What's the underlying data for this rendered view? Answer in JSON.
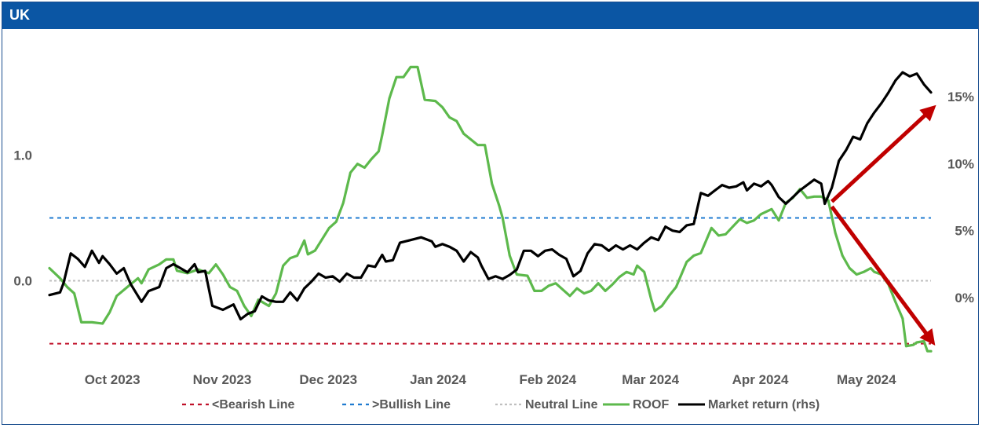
{
  "title": "UK",
  "colors": {
    "title_bar": "#0b56a4",
    "roof": "#5db94c",
    "market": "#000000",
    "bearish": "#c0112a",
    "bullish": "#1f7bd0",
    "neutral": "#bfbfbf",
    "arrow": "#c00000"
  },
  "chart_data": {
    "type": "line",
    "title": "UK",
    "x_tick_labels": [
      "Oct 2023",
      "Nov 2023",
      "Dec 2023",
      "Jan 2024",
      "Feb 2024",
      "Mar 2024",
      "Apr 2024",
      "May 2024"
    ],
    "x_tick_dates": [
      "2023-10-01",
      "2023-11-01",
      "2023-12-01",
      "2024-01-01",
      "2024-02-01",
      "2024-03-01",
      "2024-04-01",
      "2024-05-01"
    ],
    "x_range": [
      "2023-09-15",
      "2024-05-21"
    ],
    "y_left": {
      "ticks": [
        0.0,
        1.0
      ],
      "tick_labels": [
        "0.0",
        "1.0"
      ],
      "range": [
        -0.69,
        1.84
      ]
    },
    "y_right": {
      "ticks": [
        0,
        5,
        10,
        15
      ],
      "tick_labels": [
        "0%",
        "5%",
        "10%",
        "15%"
      ],
      "range": [
        -5.2,
        18.5
      ],
      "unit": "%"
    },
    "reference_lines": [
      {
        "name": "<Bearish Line",
        "value": -0.5,
        "style": "dashed",
        "color": "#c0112a"
      },
      {
        "name": ">Bullish Line",
        "value": 0.5,
        "style": "dashed",
        "color": "#1f7bd0"
      },
      {
        "name": "Neutral Line",
        "value": 0.0,
        "style": "dotted",
        "color": "#bfbfbf"
      }
    ],
    "series": [
      {
        "name": "ROOF",
        "axis": "left",
        "color": "#5db94c",
        "points": [
          [
            "2023-09-15",
            0.1
          ],
          [
            "2023-09-18",
            0.02
          ],
          [
            "2023-09-20",
            -0.05
          ],
          [
            "2023-09-22",
            -0.1
          ],
          [
            "2023-09-24",
            -0.33
          ],
          [
            "2023-09-27",
            -0.33
          ],
          [
            "2023-09-30",
            -0.34
          ],
          [
            "2023-10-02",
            -0.25
          ],
          [
            "2023-10-04",
            -0.12
          ],
          [
            "2023-10-07",
            -0.05
          ],
          [
            "2023-10-10",
            0.02
          ],
          [
            "2023-10-11",
            -0.02
          ],
          [
            "2023-10-13",
            0.09
          ],
          [
            "2023-10-16",
            0.13
          ],
          [
            "2023-10-18",
            0.17
          ],
          [
            "2023-10-20",
            0.17
          ],
          [
            "2023-10-21",
            0.08
          ],
          [
            "2023-10-24",
            0.06
          ],
          [
            "2023-10-27",
            0.09
          ],
          [
            "2023-10-30",
            0.06
          ],
          [
            "2023-11-01",
            0.13
          ],
          [
            "2023-11-03",
            0.05
          ],
          [
            "2023-11-05",
            -0.05
          ],
          [
            "2023-11-07",
            -0.08
          ],
          [
            "2023-11-09",
            -0.2
          ],
          [
            "2023-11-11",
            -0.28
          ],
          [
            "2023-11-13",
            -0.15
          ],
          [
            "2023-11-16",
            -0.2
          ],
          [
            "2023-11-18",
            -0.1
          ],
          [
            "2023-11-20",
            0.12
          ],
          [
            "2023-11-22",
            0.18
          ],
          [
            "2023-11-24",
            0.2
          ],
          [
            "2023-11-26",
            0.32
          ],
          [
            "2023-11-27",
            0.21
          ],
          [
            "2023-11-29",
            0.24
          ],
          [
            "2023-12-01",
            0.33
          ],
          [
            "2023-12-03",
            0.42
          ],
          [
            "2023-12-05",
            0.47
          ],
          [
            "2023-12-07",
            0.62
          ],
          [
            "2023-12-09",
            0.86
          ],
          [
            "2023-12-11",
            0.93
          ],
          [
            "2023-12-13",
            0.9
          ],
          [
            "2023-12-15",
            0.97
          ],
          [
            "2023-12-17",
            1.03
          ],
          [
            "2023-12-18",
            1.16
          ],
          [
            "2023-12-20",
            1.45
          ],
          [
            "2023-12-22",
            1.62
          ],
          [
            "2023-12-24",
            1.62
          ],
          [
            "2023-12-26",
            1.7
          ],
          [
            "2023-12-28",
            1.7
          ],
          [
            "2023-12-30",
            1.44
          ],
          [
            "2024-01-02",
            1.43
          ],
          [
            "2024-01-04",
            1.38
          ],
          [
            "2024-01-06",
            1.3
          ],
          [
            "2024-01-08",
            1.27
          ],
          [
            "2024-01-10",
            1.17
          ],
          [
            "2024-01-14",
            1.08
          ],
          [
            "2024-01-16",
            1.08
          ],
          [
            "2024-01-18",
            0.77
          ],
          [
            "2024-01-20",
            0.6
          ],
          [
            "2024-01-21",
            0.5
          ],
          [
            "2024-01-23",
            0.2
          ],
          [
            "2024-01-25",
            0.05
          ],
          [
            "2024-01-28",
            0.04
          ],
          [
            "2024-01-30",
            -0.08
          ],
          [
            "2024-02-01",
            -0.08
          ],
          [
            "2024-02-03",
            -0.04
          ],
          [
            "2024-02-05",
            -0.02
          ],
          [
            "2024-02-07",
            -0.07
          ],
          [
            "2024-02-09",
            -0.12
          ],
          [
            "2024-02-11",
            -0.06
          ],
          [
            "2024-02-13",
            -0.1
          ],
          [
            "2024-02-15",
            -0.08
          ],
          [
            "2024-02-17",
            -0.02
          ],
          [
            "2024-02-19",
            -0.08
          ],
          [
            "2024-02-21",
            -0.03
          ],
          [
            "2024-02-23",
            0.03
          ],
          [
            "2024-02-25",
            0.07
          ],
          [
            "2024-02-27",
            0.05
          ],
          [
            "2024-02-28",
            0.12
          ],
          [
            "2024-03-01",
            0.07
          ],
          [
            "2024-03-03",
            -0.15
          ],
          [
            "2024-03-04",
            -0.24
          ],
          [
            "2024-03-06",
            -0.2
          ],
          [
            "2024-03-08",
            -0.12
          ],
          [
            "2024-03-10",
            -0.05
          ],
          [
            "2024-03-13",
            0.15
          ],
          [
            "2024-03-15",
            0.2
          ],
          [
            "2024-03-17",
            0.22
          ],
          [
            "2024-03-20",
            0.42
          ],
          [
            "2024-03-22",
            0.36
          ],
          [
            "2024-03-24",
            0.37
          ],
          [
            "2024-03-26",
            0.43
          ],
          [
            "2024-03-28",
            0.49
          ],
          [
            "2024-03-30",
            0.46
          ],
          [
            "2024-04-01",
            0.48
          ],
          [
            "2024-04-03",
            0.53
          ],
          [
            "2024-04-06",
            0.57
          ],
          [
            "2024-04-08",
            0.48
          ],
          [
            "2024-04-10",
            0.62
          ],
          [
            "2024-04-12",
            0.66
          ],
          [
            "2024-04-14",
            0.73
          ],
          [
            "2024-04-16",
            0.66
          ],
          [
            "2024-04-18",
            0.67
          ],
          [
            "2024-04-20",
            0.67
          ],
          [
            "2024-04-22",
            0.64
          ],
          [
            "2024-04-24",
            0.38
          ],
          [
            "2024-04-26",
            0.2
          ],
          [
            "2024-04-28",
            0.1
          ],
          [
            "2024-04-30",
            0.05
          ],
          [
            "2024-05-02",
            0.07
          ],
          [
            "2024-05-04",
            0.1
          ],
          [
            "2024-05-05",
            0.07
          ],
          [
            "2024-05-07",
            0.05
          ],
          [
            "2024-05-09",
            -0.03
          ],
          [
            "2024-05-11",
            -0.17
          ],
          [
            "2024-05-13",
            -0.3
          ],
          [
            "2024-05-14",
            -0.52
          ],
          [
            "2024-05-16",
            -0.51
          ],
          [
            "2024-05-17",
            -0.49
          ],
          [
            "2024-05-19",
            -0.48
          ],
          [
            "2024-05-20",
            -0.56
          ],
          [
            "2024-05-21",
            -0.56
          ]
        ]
      },
      {
        "name": "Market return (rhs)",
        "axis": "right",
        "color": "#000000",
        "points": [
          [
            "2023-09-15",
            0.2
          ],
          [
            "2023-09-18",
            0.4
          ],
          [
            "2023-09-19",
            1.1
          ],
          [
            "2023-09-21",
            3.3
          ],
          [
            "2023-09-23",
            2.9
          ],
          [
            "2023-09-25",
            2.3
          ],
          [
            "2023-09-27",
            3.5
          ],
          [
            "2023-09-29",
            2.6
          ],
          [
            "2023-09-30",
            3.1
          ],
          [
            "2023-10-02",
            2.5
          ],
          [
            "2023-10-04",
            1.8
          ],
          [
            "2023-10-06",
            2.2
          ],
          [
            "2023-10-08",
            1.0
          ],
          [
            "2023-10-11",
            -0.3
          ],
          [
            "2023-10-13",
            0.5
          ],
          [
            "2023-10-16",
            0.8
          ],
          [
            "2023-10-18",
            2.2
          ],
          [
            "2023-10-20",
            2.5
          ],
          [
            "2023-10-22",
            2.2
          ],
          [
            "2023-10-24",
            1.9
          ],
          [
            "2023-10-26",
            2.5
          ],
          [
            "2023-10-27",
            1.9
          ],
          [
            "2023-10-29",
            2.0
          ],
          [
            "2023-10-31",
            -0.6
          ],
          [
            "2023-11-03",
            -0.9
          ],
          [
            "2023-11-06",
            -0.5
          ],
          [
            "2023-11-08",
            -1.6
          ],
          [
            "2023-11-10",
            -1.2
          ],
          [
            "2023-11-12",
            -1.0
          ],
          [
            "2023-11-14",
            0.1
          ],
          [
            "2023-11-16",
            -0.2
          ],
          [
            "2023-11-18",
            -0.3
          ],
          [
            "2023-11-20",
            -0.3
          ],
          [
            "2023-11-22",
            0.4
          ],
          [
            "2023-11-24",
            -0.2
          ],
          [
            "2023-11-26",
            0.7
          ],
          [
            "2023-11-28",
            1.2
          ],
          [
            "2023-11-30",
            1.8
          ],
          [
            "2023-12-02",
            1.5
          ],
          [
            "2023-12-04",
            1.6
          ],
          [
            "2023-12-06",
            1.2
          ],
          [
            "2023-12-08",
            1.8
          ],
          [
            "2023-12-10",
            1.5
          ],
          [
            "2023-12-12",
            1.5
          ],
          [
            "2023-12-14",
            2.4
          ],
          [
            "2023-12-16",
            2.3
          ],
          [
            "2023-12-18",
            3.2
          ],
          [
            "2023-12-19",
            2.7
          ],
          [
            "2023-12-21",
            2.8
          ],
          [
            "2023-12-23",
            4.1
          ],
          [
            "2023-12-26",
            4.3
          ],
          [
            "2023-12-29",
            4.5
          ],
          [
            "2024-01-01",
            4.2
          ],
          [
            "2024-01-02",
            3.8
          ],
          [
            "2024-01-04",
            4.0
          ],
          [
            "2024-01-06",
            3.8
          ],
          [
            "2024-01-08",
            3.5
          ],
          [
            "2024-01-10",
            2.7
          ],
          [
            "2024-01-12",
            3.4
          ],
          [
            "2024-01-14",
            3.0
          ],
          [
            "2024-01-15",
            2.4
          ],
          [
            "2024-01-17",
            1.4
          ],
          [
            "2024-01-19",
            1.6
          ],
          [
            "2024-01-21",
            1.4
          ],
          [
            "2024-01-23",
            1.7
          ],
          [
            "2024-01-25",
            2.1
          ],
          [
            "2024-01-27",
            3.5
          ],
          [
            "2024-01-29",
            3.5
          ],
          [
            "2024-01-31",
            3.1
          ],
          [
            "2024-02-02",
            3.5
          ],
          [
            "2024-02-04",
            3.6
          ],
          [
            "2024-02-06",
            3.2
          ],
          [
            "2024-02-08",
            2.9
          ],
          [
            "2024-02-10",
            1.6
          ],
          [
            "2024-02-12",
            2.0
          ],
          [
            "2024-02-14",
            3.3
          ],
          [
            "2024-02-16",
            4.0
          ],
          [
            "2024-02-18",
            3.9
          ],
          [
            "2024-02-20",
            3.5
          ],
          [
            "2024-02-22",
            3.9
          ],
          [
            "2024-02-24",
            3.6
          ],
          [
            "2024-02-26",
            3.9
          ],
          [
            "2024-02-28",
            3.6
          ],
          [
            "2024-03-01",
            4.1
          ],
          [
            "2024-03-03",
            4.5
          ],
          [
            "2024-03-05",
            4.3
          ],
          [
            "2024-03-07",
            5.3
          ],
          [
            "2024-03-09",
            5.0
          ],
          [
            "2024-03-11",
            4.9
          ],
          [
            "2024-03-13",
            5.4
          ],
          [
            "2024-03-15",
            5.5
          ],
          [
            "2024-03-17",
            7.8
          ],
          [
            "2024-03-19",
            7.6
          ],
          [
            "2024-03-21",
            8.0
          ],
          [
            "2024-03-23",
            8.4
          ],
          [
            "2024-03-25",
            8.2
          ],
          [
            "2024-03-27",
            8.3
          ],
          [
            "2024-03-29",
            8.6
          ],
          [
            "2024-03-30",
            8.0
          ],
          [
            "2024-04-01",
            8.5
          ],
          [
            "2024-04-03",
            8.3
          ],
          [
            "2024-04-05",
            8.7
          ],
          [
            "2024-04-06",
            8.4
          ],
          [
            "2024-04-08",
            7.5
          ],
          [
            "2024-04-10",
            7.0
          ],
          [
            "2024-04-12",
            7.5
          ],
          [
            "2024-04-14",
            8.0
          ],
          [
            "2024-04-16",
            8.4
          ],
          [
            "2024-04-18",
            8.8
          ],
          [
            "2024-04-20",
            8.5
          ],
          [
            "2024-04-21",
            7.0
          ],
          [
            "2024-04-23",
            8.2
          ],
          [
            "2024-04-25",
            10.2
          ],
          [
            "2024-04-27",
            11.0
          ],
          [
            "2024-04-29",
            12.0
          ],
          [
            "2024-05-01",
            11.8
          ],
          [
            "2024-05-03",
            13.0
          ],
          [
            "2024-05-05",
            13.8
          ],
          [
            "2024-05-07",
            14.5
          ],
          [
            "2024-05-09",
            15.3
          ],
          [
            "2024-05-11",
            16.2
          ],
          [
            "2024-05-13",
            16.8
          ],
          [
            "2024-05-15",
            16.5
          ],
          [
            "2024-05-17",
            16.7
          ],
          [
            "2024-05-19",
            15.9
          ],
          [
            "2024-05-21",
            15.3
          ]
        ]
      }
    ],
    "annotations": [
      {
        "type": "arrow",
        "from": [
          "2024-04-23",
          0.63
        ],
        "to": [
          "2024-05-21",
          1.36
        ],
        "axis": "left",
        "color": "#c00000"
      },
      {
        "type": "arrow",
        "from": [
          "2024-04-23",
          0.59
        ],
        "to": [
          "2024-05-21",
          -0.47
        ],
        "axis": "left",
        "color": "#c00000"
      }
    ],
    "legend": {
      "position": "bottom",
      "entries": [
        {
          "label": "<Bearish Line",
          "style": "dashed",
          "color": "#c0112a"
        },
        {
          "label": ">Bullish Line",
          "style": "dashed",
          "color": "#1f7bd0"
        },
        {
          "label": "Neutral Line",
          "style": "dotted",
          "color": "#bfbfbf"
        },
        {
          "label": "ROOF",
          "style": "solid",
          "color": "#5db94c"
        },
        {
          "label": "Market return (rhs)",
          "style": "solid",
          "color": "#000000"
        }
      ]
    },
    "grid": false
  }
}
